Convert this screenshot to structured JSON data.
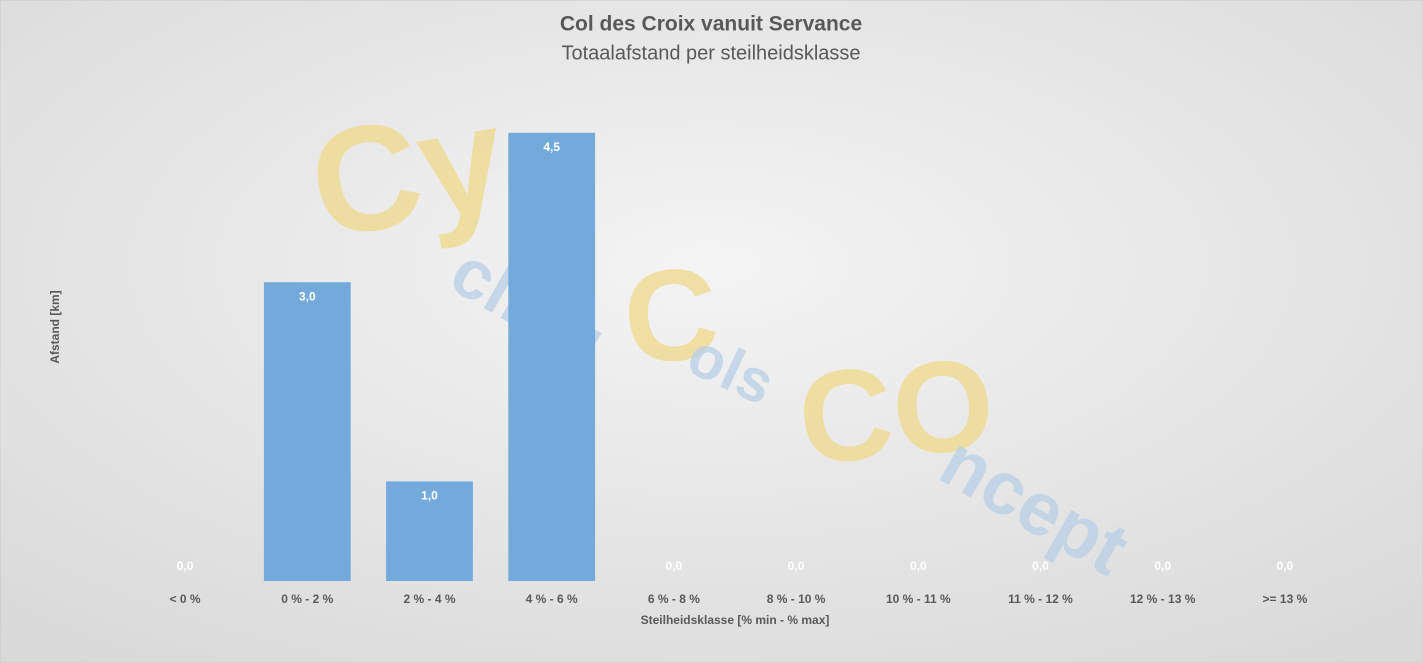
{
  "chart_data": {
    "type": "bar",
    "title": "Col des Croix vanuit Servance",
    "subtitle": "Totaalafstand per steilheidsklasse",
    "x_label": "Steilheidsklasse [% min - % max]",
    "y_label": "Afstand [km]",
    "categories": [
      "< 0 %",
      "0 % - 2 %",
      "2 % - 4 %",
      "4 % - 6 %",
      "6 % - 8 %",
      "8 % - 10 %",
      "10 % - 11 %",
      "11 % - 12 %",
      "12 % - 13 %",
      ">= 13 %"
    ],
    "values": [
      0,
      3,
      1,
      4.5,
      0,
      0,
      0,
      0,
      0,
      0
    ],
    "value_labels": [
      "0,0",
      "3,0",
      "1,0",
      "4,5",
      "0,0",
      "0,0",
      "0,0",
      "0,0",
      "0,0",
      "0,0"
    ],
    "color": "#74a9db",
    "ylim": [
      0,
      5
    ],
    "grid": false,
    "watermark": [
      "Cy",
      "cling",
      "C",
      "ols",
      "CO",
      "ncept"
    ]
  }
}
